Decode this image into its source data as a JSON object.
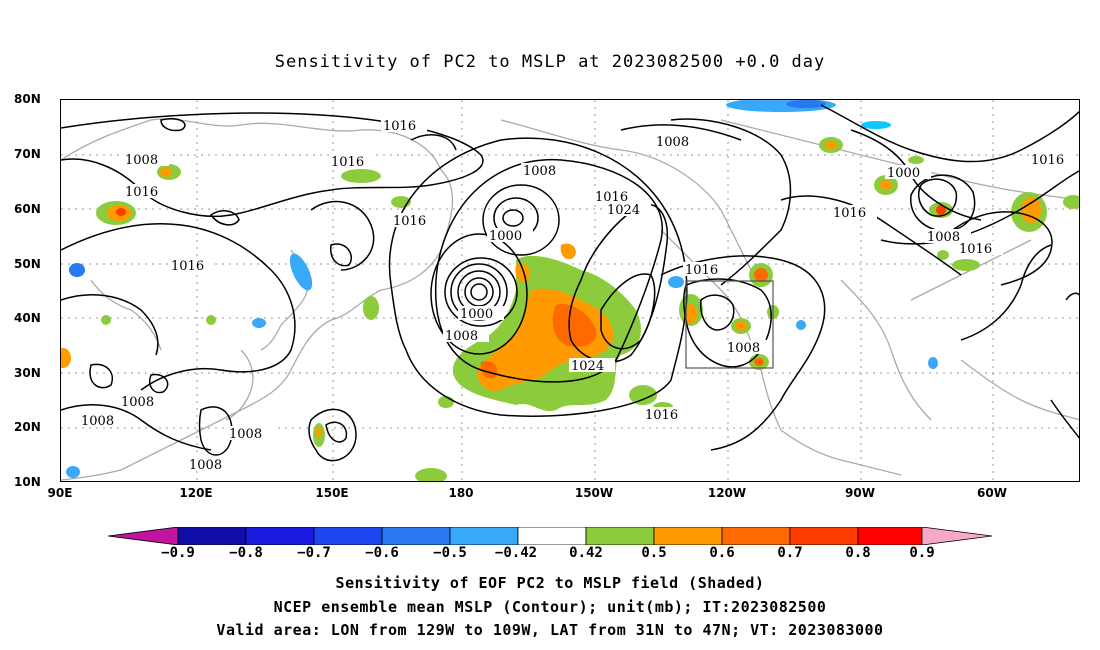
{
  "title": "Sensitivity of PC2 to MSLP at 2023082500 +0.0 day",
  "lat_labels": [
    "80N",
    "70N",
    "60N",
    "50N",
    "40N",
    "30N",
    "20N",
    "10N"
  ],
  "lon_labels": [
    "90E",
    "120E",
    "150E",
    "180",
    "150W",
    "120W",
    "90W",
    "60W"
  ],
  "contour_labels": [
    "1016",
    "1008",
    "1016",
    "1016",
    "1016",
    "1008",
    "1016",
    "1008",
    "1000",
    "1016",
    "1024",
    "1016",
    "1008",
    "1000",
    "1008",
    "1024",
    "1016",
    "1008",
    "1016",
    "1008",
    "1008",
    "1008",
    "1000",
    "1016",
    "1008",
    "1016"
  ],
  "colorbar": {
    "ticks": [
      "−0.9",
      "−0.8",
      "−0.7",
      "−0.6",
      "−0.5",
      "−0.42",
      "0.42",
      "0.5",
      "0.6",
      "0.7",
      "0.8",
      "0.9"
    ],
    "colors": [
      "#c0149e",
      "#1010a8",
      "#1c1ce0",
      "#1e46f0",
      "#2878f0",
      "#38a8f8",
      "#10c8ff",
      "#ffffff",
      "#8ccc3c",
      "#ff9a00",
      "#ff6a00",
      "#ff3c00",
      "#ff0000",
      "#f7a8c8"
    ]
  },
  "captions": [
    "Sensitivity of EOF PC2 to MSLP field (Shaded)",
    "NCEP ensemble mean MSLP (Contour); unit(mb); IT:2023082500",
    "Valid area: LON from 129W to 109W, LAT from 31N to 47N; VT: 2023083000"
  ]
}
